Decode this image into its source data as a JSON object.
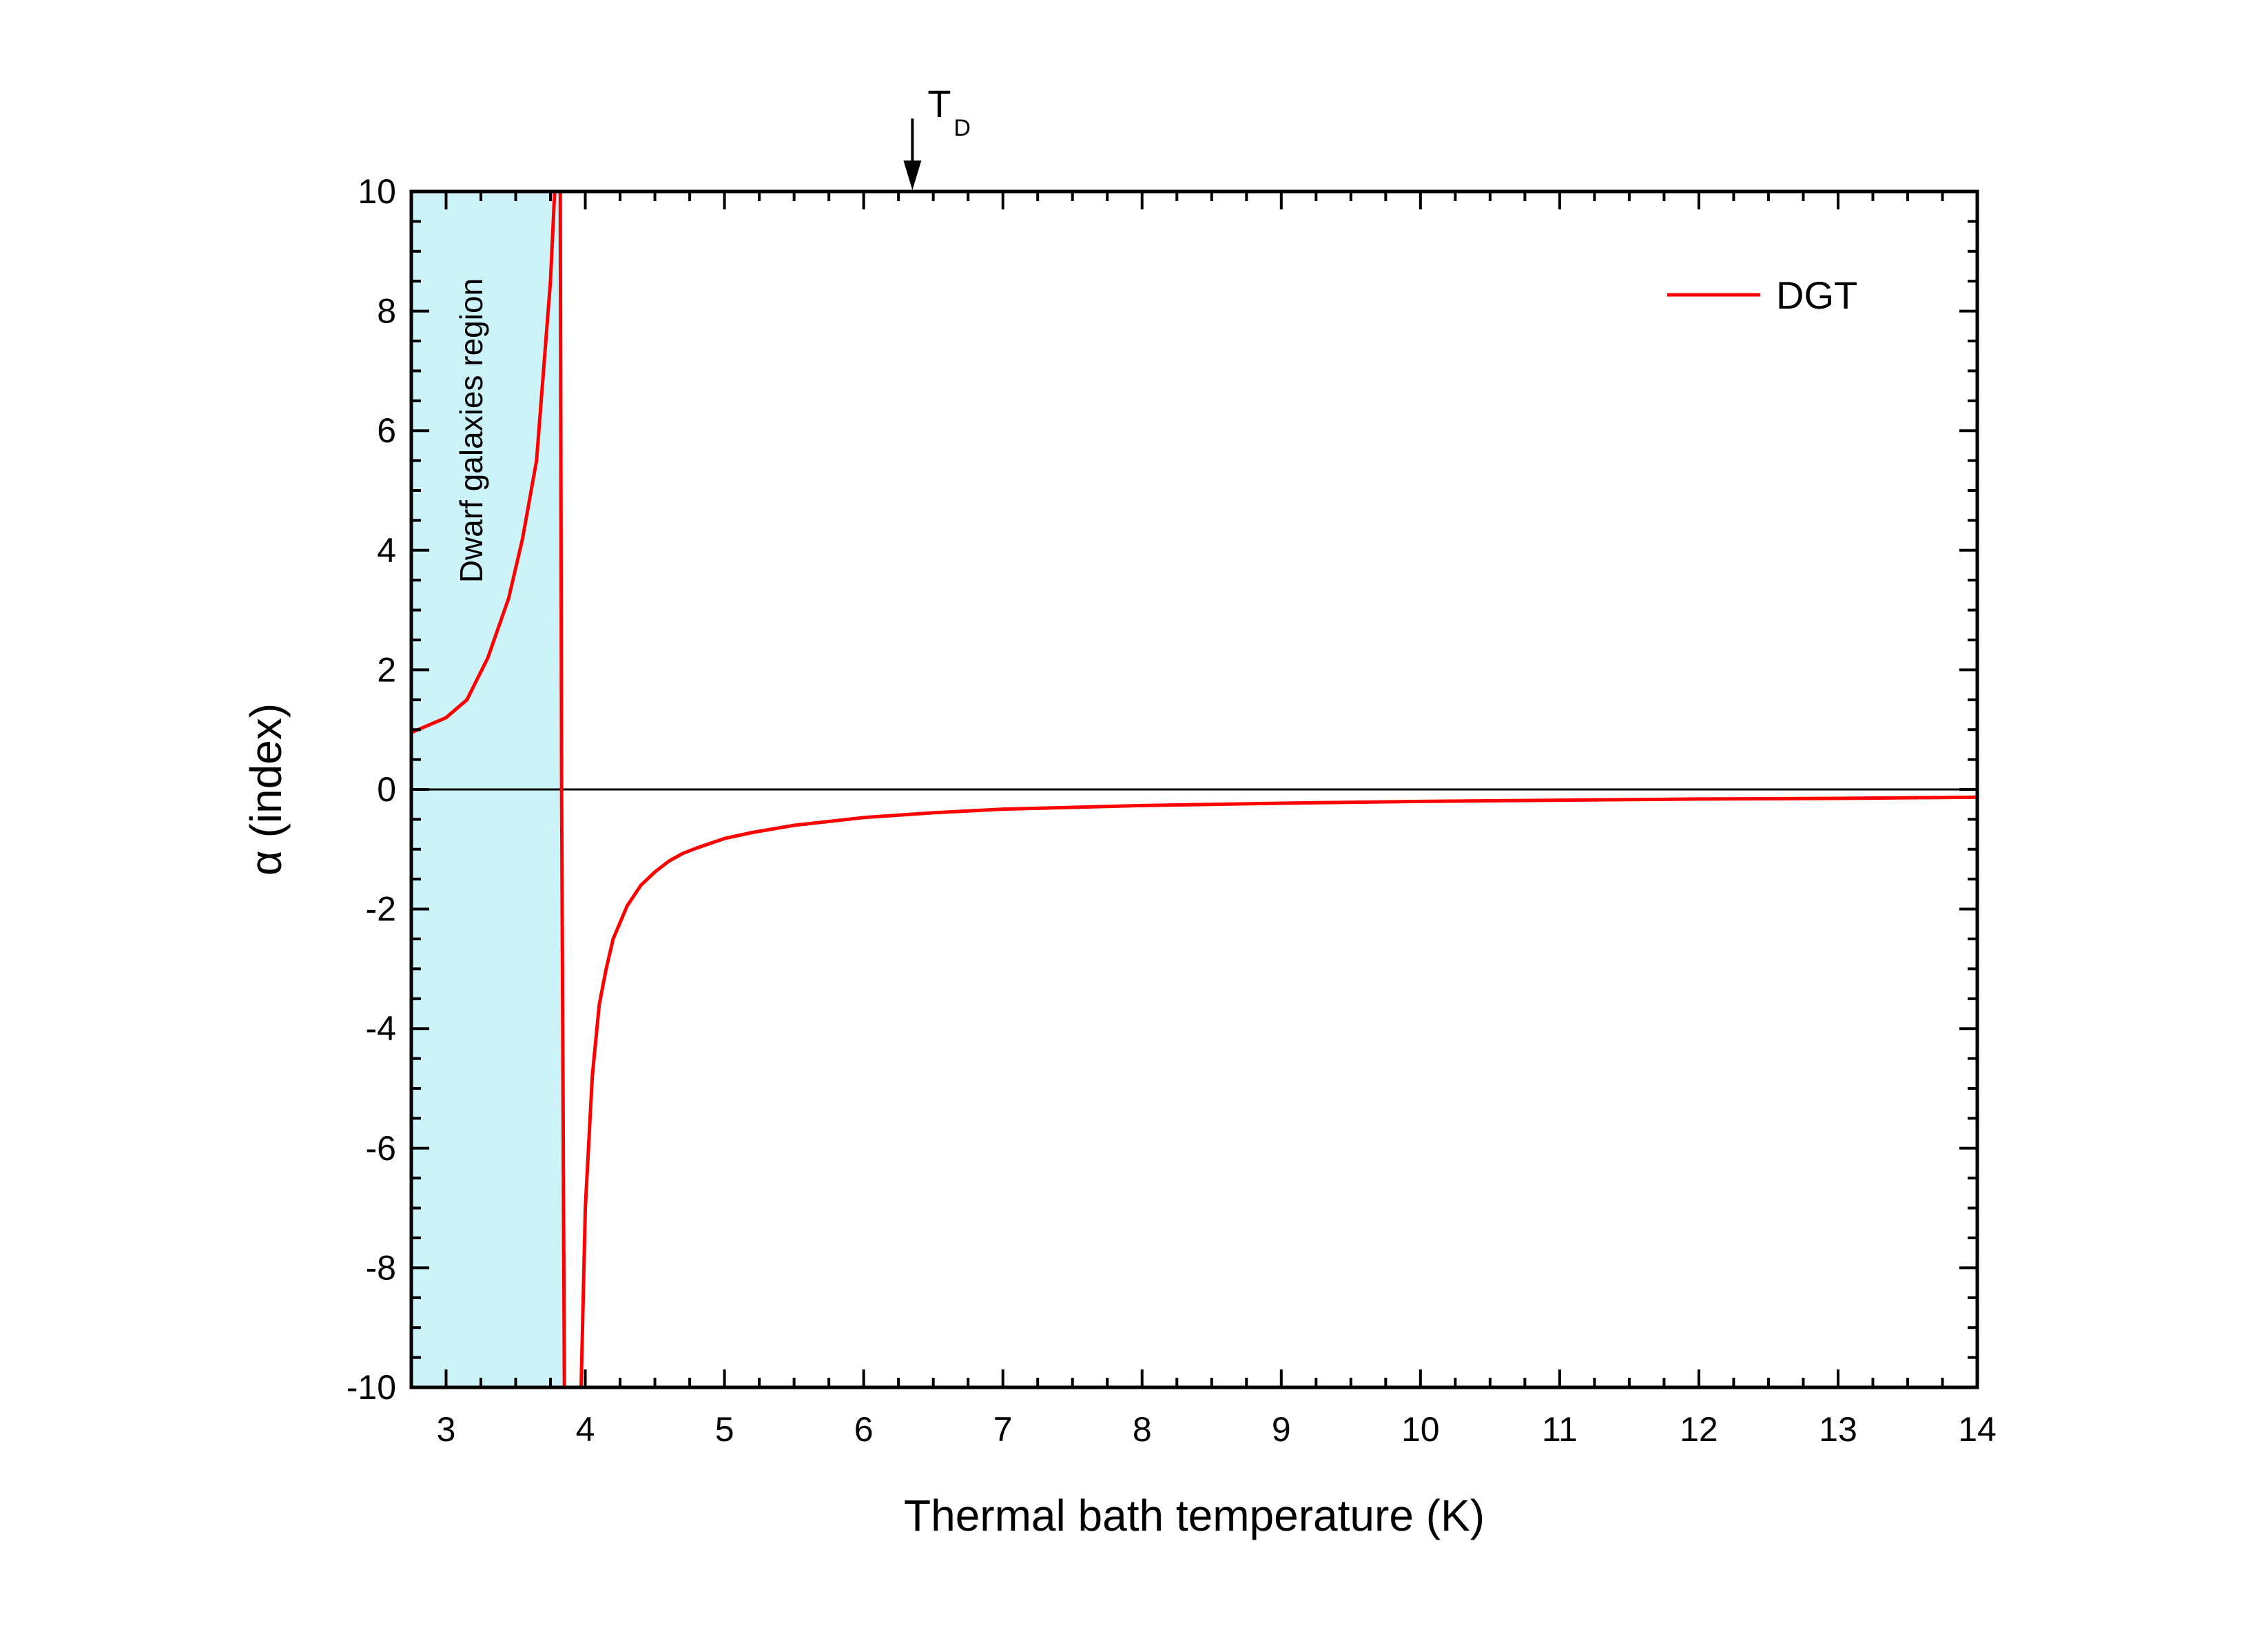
{
  "chart_data": {
    "type": "line",
    "xlabel": "Thermal bath temperature (K)",
    "ylabel": "α (index)",
    "xlim": [
      2.75,
      14
    ],
    "ylim": [
      -10,
      10
    ],
    "x_ticks": [
      3,
      4,
      5,
      6,
      7,
      8,
      9,
      10,
      11,
      12,
      13,
      14
    ],
    "y_ticks": [
      -10,
      -8,
      -6,
      -4,
      -2,
      0,
      2,
      4,
      6,
      8,
      10
    ],
    "grid": false,
    "legend_position": "top-right",
    "zero_line": true,
    "series": [
      {
        "name": "DGT",
        "color": "#ff0000",
        "segments": [
          {
            "x": [
              2.75,
              3.0,
              3.15,
              3.3,
              3.45,
              3.55,
              3.65,
              3.7,
              3.75,
              3.78,
              3.8
            ],
            "y": [
              0.95,
              1.2,
              1.5,
              2.2,
              3.2,
              4.2,
              5.5,
              7.0,
              8.5,
              10.0,
              10.0
            ]
          },
          {
            "x": [
              3.82,
              3.83,
              3.84,
              3.85
            ],
            "y": [
              10.0,
              0.0,
              -5.0,
              -10.0
            ]
          },
          {
            "x": [
              3.97,
              4.0,
              4.05,
              4.1,
              4.15,
              4.2,
              4.3,
              4.4,
              4.5,
              4.6,
              4.7,
              4.8,
              5.0,
              5.2,
              5.5,
              6.0,
              6.5,
              7.0,
              8.0,
              9.0,
              10.0,
              11.0,
              12.0,
              13.0,
              14.0
            ],
            "y": [
              -10.0,
              -7.0,
              -4.8,
              -3.6,
              -3.0,
              -2.5,
              -1.95,
              -1.6,
              -1.38,
              -1.2,
              -1.07,
              -0.98,
              -0.82,
              -0.72,
              -0.6,
              -0.47,
              -0.39,
              -0.33,
              -0.27,
              -0.23,
              -0.2,
              -0.18,
              -0.16,
              -0.15,
              -0.13
            ]
          }
        ]
      }
    ],
    "shaded_region": {
      "label": "Dwarf galaxies region",
      "x_range": [
        2.75,
        3.84
      ],
      "color": "#ccf2fa"
    },
    "marker": {
      "label": "T",
      "subscript": "D",
      "x": 6.35
    }
  }
}
